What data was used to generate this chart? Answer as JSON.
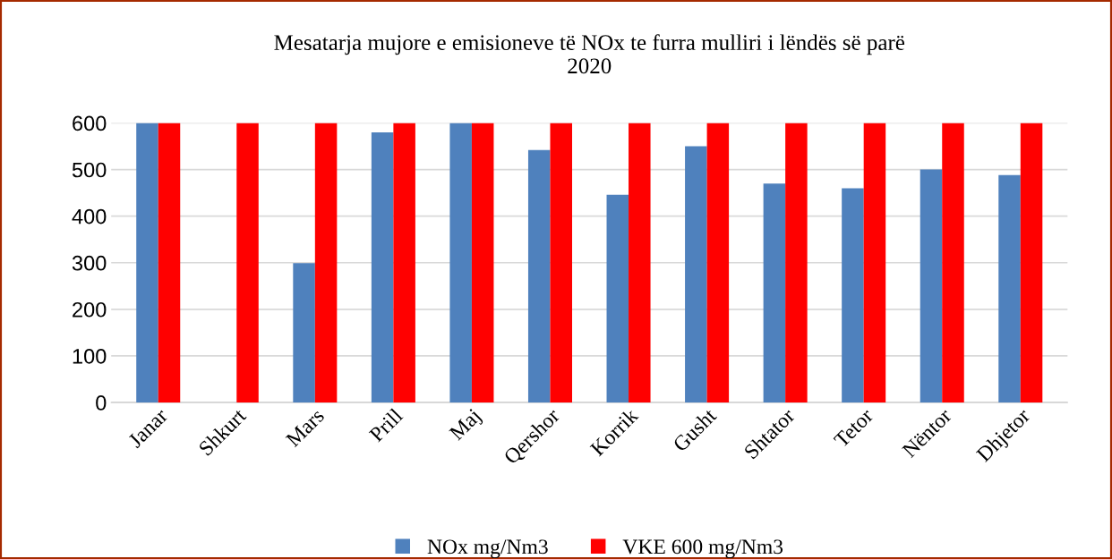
{
  "chart_data": {
    "type": "bar",
    "title": "Mesatarja mujore e emisioneve të NOx te furra mulliri i lëndës së parë\n2020",
    "categories": [
      "Janar",
      "Shkurt",
      "Mars",
      "Prill",
      "Maj",
      "Qershor",
      "Korrik",
      "Gusht",
      "Shtator",
      "Tetor",
      "Nëntor",
      "Dhjetor"
    ],
    "series": [
      {
        "name": "NOx mg/Nm3",
        "color": "#4f81bd",
        "values": [
          600,
          null,
          299,
          580,
          600,
          542,
          446,
          550,
          470,
          460,
          500,
          488
        ]
      },
      {
        "name": "VKE 600 mg/Nm3",
        "color": "#ff0000",
        "values": [
          600,
          600,
          600,
          600,
          600,
          600,
          600,
          600,
          600,
          600,
          600,
          600
        ]
      }
    ],
    "ylim": [
      0,
      600
    ],
    "yticks": [
      0,
      100,
      200,
      300,
      400,
      500,
      600
    ],
    "grid": "y",
    "legend": "bottom"
  }
}
